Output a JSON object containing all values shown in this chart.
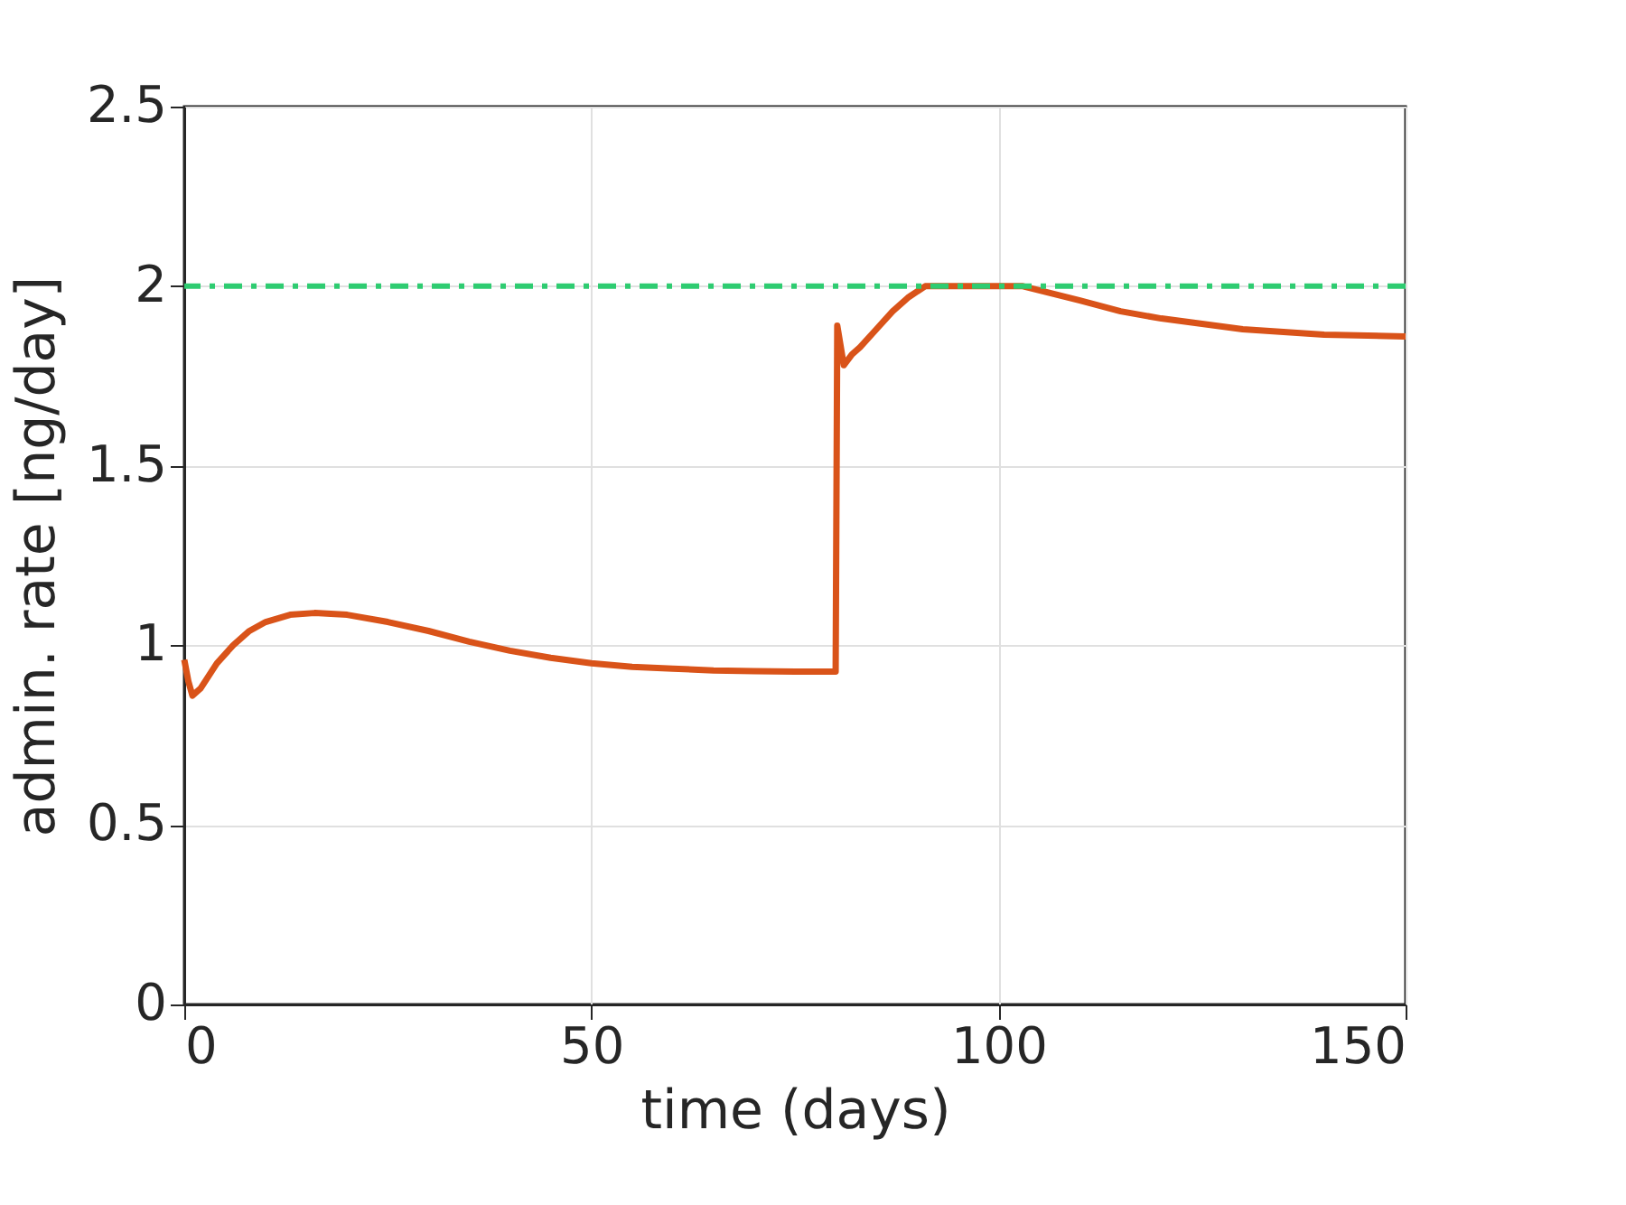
{
  "chart_data": {
    "type": "line",
    "xlabel": "time (days)",
    "ylabel": "admin. rate [ng/day]",
    "xlim": [
      0,
      150
    ],
    "xticks": [
      0,
      50,
      100,
      150
    ],
    "ylim": [
      0,
      2.5
    ],
    "yticks": [
      0,
      0.5,
      1,
      1.5,
      2,
      2.5
    ],
    "grid": true,
    "marker": "none",
    "line_style": "solid",
    "series": [
      {
        "color": "#d95319",
        "x": [
          0,
          0.5,
          1,
          2,
          4,
          6,
          8,
          10,
          13,
          16,
          20,
          25,
          30,
          35,
          40,
          45,
          50,
          55,
          60,
          65,
          70,
          75,
          80,
          80.2,
          81,
          82,
          83,
          85,
          87,
          89,
          91,
          103,
          110,
          115,
          120,
          130,
          140,
          150
        ],
        "values": [
          0.96,
          0.9,
          0.86,
          0.88,
          0.95,
          1.0,
          1.04,
          1.065,
          1.085,
          1.09,
          1.085,
          1.065,
          1.04,
          1.01,
          0.985,
          0.965,
          0.95,
          0.94,
          0.935,
          0.93,
          0.928,
          0.927,
          0.927,
          1.89,
          1.78,
          1.81,
          1.83,
          1.88,
          1.93,
          1.97,
          2.0,
          2.0,
          1.96,
          1.93,
          1.91,
          1.88,
          1.865,
          1.86
        ]
      }
    ],
    "ref_lines": [
      {
        "axis": "y",
        "value": 2,
        "color": "#2ecc71",
        "line_style": "dashed"
      }
    ]
  }
}
